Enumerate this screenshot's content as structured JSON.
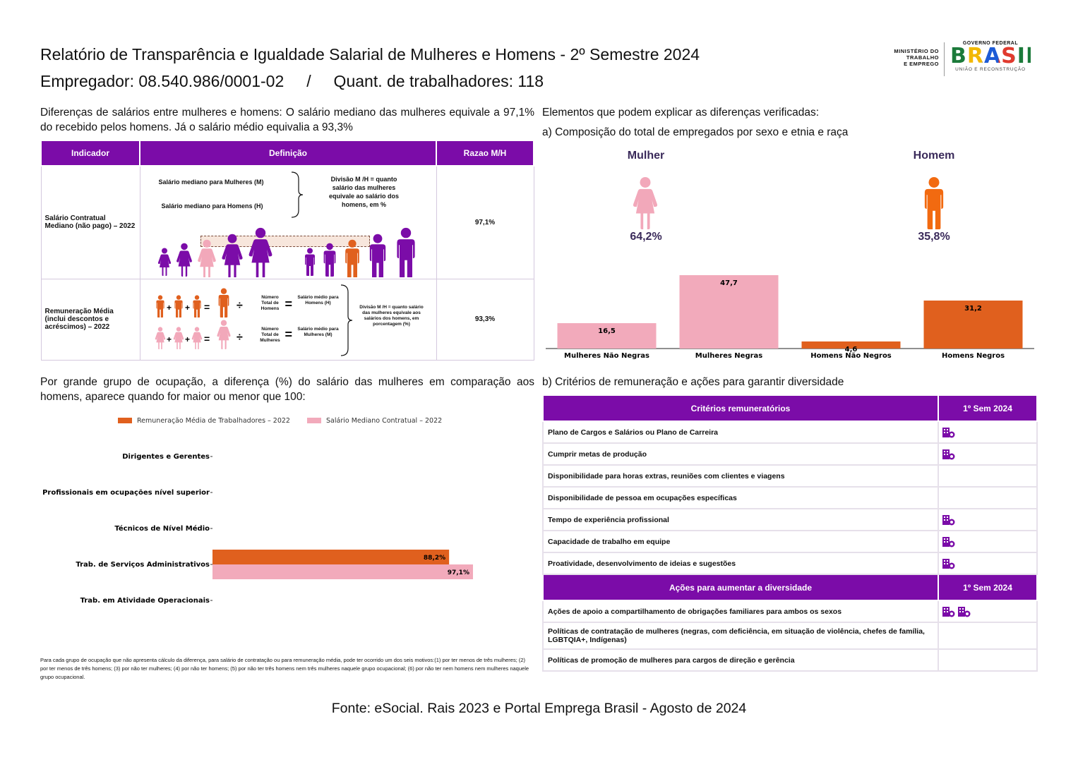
{
  "header": {
    "title": "Relatório de Transparência e Igualdade Salarial de Mulheres e Homens - 2º Semestre 2024",
    "employer_line": "Empregador: 08.540.986/0001-02     /     Quant. de trabalhadores: 118",
    "ministry": [
      "MINISTÉRIO DO",
      "TRABALHO",
      "E EMPREGO"
    ],
    "gov_top": "GOVERNO FEDERAL",
    "gov_brand": "BRASIL",
    "gov_bottom": "UNIÃO E RECONSTRUÇÃO"
  },
  "left": {
    "intro": "Diferenças de salários entre mulheres e homens: O salário mediano das mulheres equivale a 97,1% do recebido pelos homens. Já o salário médio equivalia a 93,3%",
    "table": {
      "headers": [
        "Indicador",
        "Definição",
        "Razao M/H"
      ],
      "row1": {
        "indicator": "Salário Contratual Mediano (não pago) – 2022",
        "def_m": "Salário mediano para Mulheres (M)",
        "def_h": "Salário mediano para Homens (H)",
        "def_div": "Divisão M /H = quanto salário das mulheres equivale ao salário dos homens, em %",
        "ratio": "97,1%"
      },
      "row2": {
        "indicator": "Remuneração Média (inclui descontos e acréscimos) – 2022",
        "num_h": "Número Total de Homens",
        "avg_h": "Salário médio para Homens (H)",
        "num_m": "Número Total de Mulheres",
        "avg_m": "Salário médio para Mulheres (M)",
        "def_div": "Divisão M /H = quanto salário das mulheres equivale aos salários dos homens, em porcentagem (%)",
        "ratio": "93,3%"
      }
    },
    "occupation_intro": "Por grande grupo de ocupação, a diferença (%) do salário das mulheres em comparação aos homens, aparece quando for maior ou menor que 100:",
    "footnote": "Para cada grupo de ocupação que não apresenta cálculo da diferença, para salário de contratação ou para remuneração média, pode ter ocorrido um dos seis motivos:(1) por ter menos de três mulheres; (2) por ter menos de três homens; (3) por não ter mulheres; (4) por não ter homens; (5) por não ter três homens nem três mulheres naquele grupo ocupacional; (6) por não ter nem homens nem mulheres naquele grupo ocupacional."
  },
  "right": {
    "intro": "Elementos que podem explicar as diferenças verificadas:",
    "section_a": "a) Composição do total de empregados por sexo e etnia e raça",
    "woman_label": "Mulher",
    "woman_pct": "64,2%",
    "man_label": "Homem",
    "man_pct": "35,8%",
    "section_b": "b) Critérios de remuneração e ações para garantir diversidade",
    "criteria": {
      "header": "Critérios remuneratórios",
      "period": "1º Sem 2024",
      "rows": [
        {
          "label": "Plano de Cargos e Salários ou Plano de Carreira",
          "icons": 1
        },
        {
          "label": "Cumprir metas de produção",
          "icons": 1
        },
        {
          "label": "Disponibilidade para horas extras, reuniões com clientes e viagens",
          "icons": 0
        },
        {
          "label": "Disponibilidade de pessoa em ocupações específicas",
          "icons": 0
        },
        {
          "label": "Tempo de experiência profissional",
          "icons": 1
        },
        {
          "label": "Capacidade de trabalho em equipe",
          "icons": 1
        },
        {
          "label": "Proatividade, desenvolvimento de ideias e sugestões",
          "icons": 1
        }
      ]
    },
    "actions": {
      "header": "Ações para aumentar a diversidade",
      "period": "1º Sem 2024",
      "rows": [
        {
          "label": "Ações de apoio a compartilhamento de obrigações familiares para ambos os sexos",
          "icons": 2
        },
        {
          "label": "Políticas de contratação de mulheres (negras, com deficiência, em situação de violência, chefes de família, LGBTQIA+, Indígenas)",
          "icons": 0
        },
        {
          "label": "Políticas de promoção de mulheres para cargos de direção e gerência",
          "icons": 0
        }
      ]
    }
  },
  "source": "Fonte: eSocial. Rais 2023 e Portal Emprega Brasil - Agosto de 2024",
  "colors": {
    "purple": "#7b0ca8",
    "orange": "#e0601e",
    "pink": "#f2a8ba",
    "bar_orange": "#e0601e",
    "bar_pink": "#f2aabb"
  },
  "chart_data": [
    {
      "type": "bar",
      "categories": [
        "Mulheres Não Negras",
        "Mulheres Negras",
        "Homens Não Negros",
        "Homens Negros"
      ],
      "values": [
        16.5,
        47.7,
        4.6,
        31.2
      ],
      "labels": [
        "16,5",
        "47,7",
        "4,6",
        "31,2"
      ],
      "colors": [
        "#f2aabb",
        "#f2aabb",
        "#e0601e",
        "#e0601e"
      ]
    },
    {
      "type": "bar",
      "orientation": "horizontal",
      "categories": [
        "Dirigentes e Gerentes",
        "Profissionais em ocupações nível superior",
        "Técnicos de Nível Médio",
        "Trab. de Serviços Administrativos",
        "Trab. em Atividade Operacionais"
      ],
      "series": [
        {
          "name": "Remuneração Média de Trabalhadores – 2022",
          "color": "#e0601e",
          "values": [
            null,
            null,
            null,
            88.2,
            null
          ],
          "labels": [
            null,
            null,
            null,
            "88,2%",
            null
          ]
        },
        {
          "name": "Salário Mediano Contratual – 2022",
          "color": "#f2aabb",
          "values": [
            null,
            null,
            null,
            97.1,
            null
          ],
          "labels": [
            null,
            null,
            null,
            "97,1%",
            null
          ]
        }
      ]
    }
  ]
}
